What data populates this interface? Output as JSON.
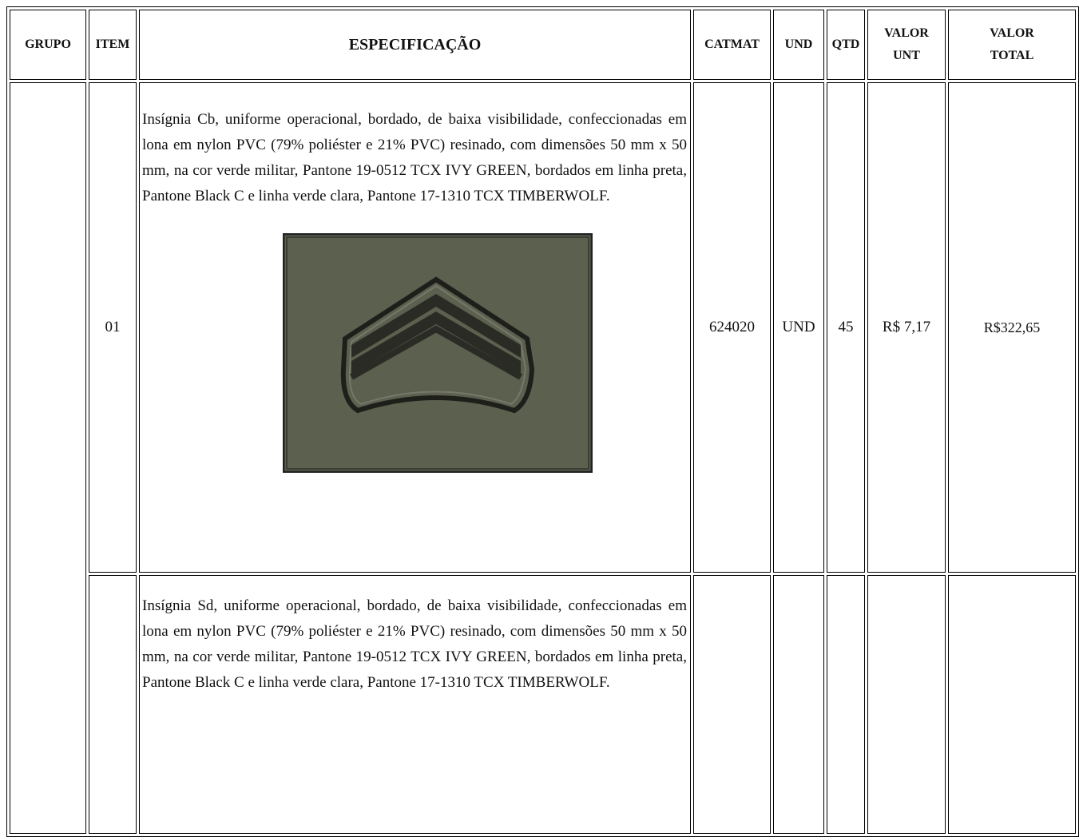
{
  "table": {
    "header": [
      "GRUPO",
      "ITEM",
      "ESPECIFICAÇÃO",
      "CATMAT",
      "UND",
      "QTD",
      "VALOR UNT",
      "VALOR TOTAL"
    ],
    "rows": [
      {
        "item": "01",
        "specification": "Insígnia Cb, uniforme operacional, bordado, de baixa visibilidade, confeccionadas em lona em nylon PVC (79% poliéster e 21% PVC) resinado, com dimensões 50 mm x 50 mm, na cor verde militar, Pantone 19-0512 TCX IVY GREEN, bordados em linha preta, Pantone Black C e linha verde clara, Pantone 17-1310 TCX TIMBERWOLF.",
        "catmat": "624020",
        "unit": "UND",
        "quantity": "45",
        "unit_value": "R$ 7,17",
        "total_value": "R$322,65"
      },
      {
        "specification": "Insígnia Sd, uniforme operacional, bordado, de baixa visibilidade, confeccionadas em lona em nylon PVC (79% poliéster e 21% PVC) resinado, com dimensões 50 mm x 50 mm, na cor verde militar, Pantone 19-0512 TCX IVY GREEN, bordados em linha preta, Pantone Black C e linha verde clara, Pantone 17-1310 TCX TIMBERWOLF."
      }
    ]
  }
}
